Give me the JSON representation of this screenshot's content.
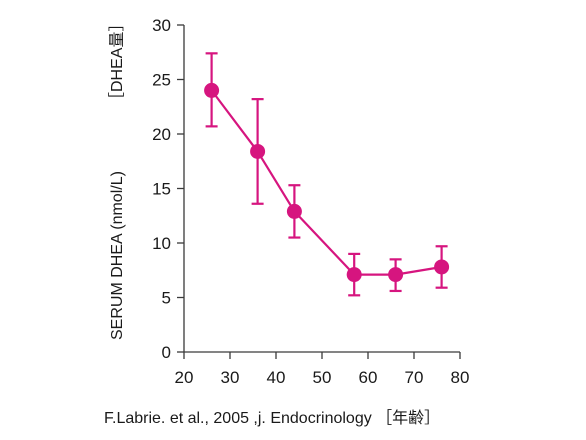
{
  "chart_data": {
    "type": "line",
    "x": [
      26,
      36,
      44,
      57,
      66,
      76
    ],
    "series": [
      {
        "values": [
          24,
          18.4,
          12.9,
          7.1,
          7.1,
          7.8
        ],
        "err_low": [
          20.7,
          13.6,
          10.5,
          5.2,
          5.6,
          5.9
        ],
        "err_high": [
          27.4,
          23.2,
          15.3,
          9.0,
          8.5,
          9.7
        ]
      }
    ],
    "xlim": [
      20,
      80
    ],
    "ylim": [
      0,
      30
    ],
    "xticks": [
      20,
      30,
      40,
      50,
      60,
      70,
      80
    ],
    "yticks": [
      0,
      5,
      10,
      15,
      20,
      25,
      30
    ],
    "xlabel": "",
    "ylabel": "SERUM DHEA (nmol/L)",
    "ylabel_right": "［DHEA量］",
    "color": "#d6157f",
    "grid": false
  },
  "source": "F.Labrie. et al., 2005 ,j. Endocrinology ［年齢］"
}
